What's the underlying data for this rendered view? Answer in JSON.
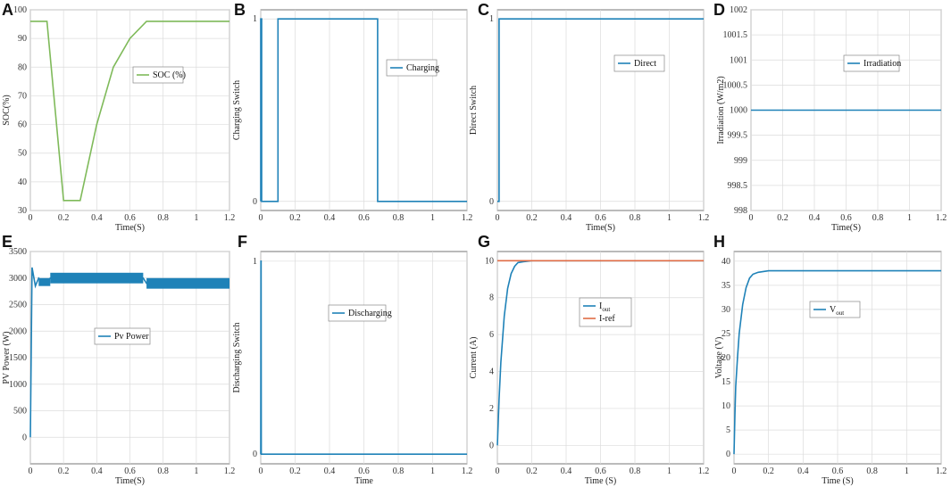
{
  "colors": {
    "blue": "#1f82b8",
    "green": "#7fba5a",
    "orange": "#e06c45",
    "grid": "#dcdcdc",
    "axis": "#555555"
  },
  "chart_data": [
    {
      "id": "A",
      "letter": "A",
      "type": "line",
      "xlabel": "Time(S)",
      "ylabel": "SOC(%)",
      "xlim": [
        0,
        1.2
      ],
      "ylim": [
        30,
        100
      ],
      "xticks": [
        "0",
        "0.2",
        "0.4",
        "0.6",
        "0.8",
        "1",
        "1.2"
      ],
      "yticks": [
        "30",
        "40",
        "50",
        "60",
        "70",
        "80",
        "90",
        "100"
      ],
      "legend": "top-right",
      "series": [
        {
          "name": "SOC (%)",
          "color": "#7fba5a",
          "x": [
            0,
            0.1,
            0.2,
            0.3,
            0.4,
            0.5,
            0.6,
            0.7,
            1.2
          ],
          "y": [
            96,
            96,
            33.5,
            33.5,
            60,
            80,
            90,
            96,
            96
          ]
        }
      ]
    },
    {
      "id": "B",
      "letter": "B",
      "type": "line",
      "xlabel": "",
      "ylabel": "Charging Switch",
      "xlim": [
        0,
        1.2
      ],
      "ylim": [
        -0.05,
        1.05
      ],
      "xticks": [
        "0",
        "0.2",
        "0.4",
        "0.6",
        "0.8",
        "1",
        "1.2"
      ],
      "yticks": [
        "0",
        "1"
      ],
      "ytick_values": [
        0,
        1
      ],
      "legend": "top-right",
      "series": [
        {
          "name": "Charging",
          "color": "#1f82b8",
          "x": [
            0,
            0,
            0.005,
            0.005,
            0.1,
            0.1,
            0.68,
            0.68,
            1.2
          ],
          "y": [
            0,
            1,
            1,
            0,
            0,
            1,
            1,
            0,
            0
          ]
        }
      ]
    },
    {
      "id": "C",
      "letter": "C",
      "type": "line",
      "xlabel": "Time(S)",
      "ylabel": "Direct Switch",
      "xlim": [
        0,
        1.2
      ],
      "ylim": [
        -0.05,
        1.05
      ],
      "xticks": [
        "0",
        "0.2",
        "0.4",
        "0.6",
        "0.8",
        "1",
        "1.2"
      ],
      "yticks": [
        "0",
        "1"
      ],
      "ytick_values": [
        0,
        1
      ],
      "legend": "top-right",
      "series": [
        {
          "name": "Direct",
          "color": "#1f82b8",
          "x": [
            0,
            0.01,
            0.01,
            1.2
          ],
          "y": [
            0,
            0,
            1,
            1
          ]
        }
      ]
    },
    {
      "id": "D",
      "letter": "D",
      "type": "line",
      "xlabel": "Time(S)",
      "ylabel": "Irradiation (W/m2)",
      "xlim": [
        0,
        1.2
      ],
      "ylim": [
        998,
        1002
      ],
      "xticks": [
        "0",
        "0.2",
        "0.4",
        "0.6",
        "0.8",
        "1",
        "1.2"
      ],
      "yticks": [
        "998",
        "998.5",
        "999",
        "999.5",
        "1000",
        "1000.5",
        "1001",
        "1001.5",
        "1002"
      ],
      "legend": "top-right",
      "series": [
        {
          "name": "Irradiation",
          "color": "#1f82b8",
          "x": [
            0,
            1.2
          ],
          "y": [
            1000,
            1000
          ]
        }
      ]
    },
    {
      "id": "E",
      "letter": "E",
      "type": "line",
      "xlabel": "Time(S)",
      "ylabel": "PV Power (W)",
      "xlim": [
        0,
        1.2
      ],
      "ylim": [
        -500,
        3500
      ],
      "xticks": [
        "0",
        "0.2",
        "0.4",
        "0.6",
        "0.8",
        "1",
        "1.2"
      ],
      "yticks": [
        "0",
        "500",
        "1000",
        "1500",
        "2000",
        "2500",
        "3000",
        "3500"
      ],
      "legend": "center",
      "series": [
        {
          "name": "Pv Power",
          "color": "#1f82b8",
          "x": [
            0,
            0.01,
            0.03,
            0.05,
            0.08,
            0.12,
            0.68,
            0.7,
            1.2
          ],
          "y": [
            0,
            3200,
            2850,
            3000,
            2900,
            3000,
            3000,
            2900,
            2900
          ]
        }
      ]
    },
    {
      "id": "F",
      "letter": "F",
      "type": "line",
      "xlabel": "Time",
      "ylabel": "Discharging Switch",
      "xlim": [
        0,
        1.2
      ],
      "ylim": [
        -0.05,
        1.05
      ],
      "xticks": [
        "0",
        "0.2",
        "0.4",
        "0.6",
        "0.8",
        "1",
        "1.2"
      ],
      "yticks": [
        "0",
        "1"
      ],
      "ytick_values": [
        0,
        1
      ],
      "legend": "center",
      "series": [
        {
          "name": "Discharging",
          "color": "#1f82b8",
          "x": [
            0,
            0.001,
            0.002,
            0.003,
            1.2
          ],
          "y": [
            0,
            1,
            1,
            0,
            0
          ]
        }
      ]
    },
    {
      "id": "G",
      "letter": "G",
      "type": "line",
      "xlabel": "Time (S)",
      "ylabel": "Current (A)",
      "xlim": [
        0,
        1.2
      ],
      "ylim": [
        -1,
        10.5
      ],
      "xticks": [
        "0",
        "0.2",
        "0.4",
        "0.6",
        "0.8",
        "1",
        "1.2"
      ],
      "yticks": [
        "0",
        "2",
        "4",
        "6",
        "8",
        "10"
      ],
      "ytick_values": [
        0,
        2,
        4,
        6,
        8,
        10
      ],
      "legend": "center",
      "series": [
        {
          "name": "I",
          "sub": "out",
          "color": "#1f82b8",
          "x": [
            0,
            0.01,
            0.02,
            0.04,
            0.06,
            0.08,
            0.1,
            0.12,
            0.15,
            0.2,
            1.2
          ],
          "y": [
            0,
            2.5,
            4.5,
            7,
            8.5,
            9.3,
            9.7,
            9.9,
            9.95,
            10,
            10
          ]
        },
        {
          "name": "I-ref",
          "color": "#e06c45",
          "x": [
            0,
            1.2
          ],
          "y": [
            10,
            10
          ]
        }
      ]
    },
    {
      "id": "H",
      "letter": "H",
      "type": "line",
      "xlabel": "Time (S)",
      "ylabel": "Voltage (V)",
      "xlim": [
        0,
        1.2
      ],
      "ylim": [
        -2,
        42
      ],
      "xticks": [
        "0",
        "0.2",
        "0.4",
        "0.6",
        "0.8",
        "1",
        "1.2"
      ],
      "yticks": [
        "0",
        "5",
        "10",
        "15",
        "20",
        "25",
        "30",
        "35",
        "40"
      ],
      "legend": "center",
      "series": [
        {
          "name": "V",
          "sub": "out",
          "color": "#1f82b8",
          "x": [
            0,
            0.005,
            0.01,
            0.02,
            0.03,
            0.05,
            0.07,
            0.09,
            0.11,
            0.14,
            0.2,
            1.2
          ],
          "y": [
            0,
            8,
            14,
            20,
            25,
            31,
            34.5,
            36.5,
            37.3,
            37.7,
            38,
            38
          ]
        }
      ]
    }
  ]
}
